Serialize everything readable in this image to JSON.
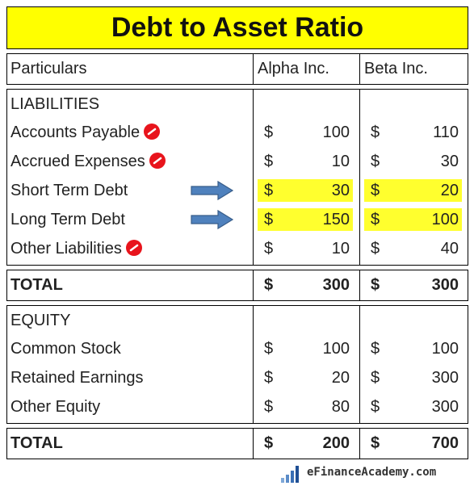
{
  "header": {
    "title": "Debt to Asset Ratio"
  },
  "table": {
    "columns": [
      "Particulars",
      "Alpha Inc.",
      "Beta Inc."
    ],
    "currency": "$",
    "sections": [
      {
        "name": "LIABILITIES",
        "rows": [
          {
            "label": "Accounts Payable",
            "alpha": 100,
            "beta": 110,
            "excluded": true
          },
          {
            "label": "Accrued Expenses",
            "alpha": 10,
            "beta": 30,
            "excluded": true
          },
          {
            "label": "Short Term Debt",
            "alpha": 30,
            "beta": 20,
            "highlight": true
          },
          {
            "label": "Long Term Debt",
            "alpha": 150,
            "beta": 100,
            "highlight": true
          },
          {
            "label": "Other Liabilities",
            "alpha": 10,
            "beta": 40,
            "excluded": true
          }
        ],
        "total": {
          "label": "TOTAL",
          "alpha": 300,
          "beta": 300
        }
      },
      {
        "name": "EQUITY",
        "rows": [
          {
            "label": "Common Stock",
            "alpha": 100,
            "beta": 100
          },
          {
            "label": "Retained Earnings",
            "alpha": 20,
            "beta": 300
          },
          {
            "label": "Other Equity",
            "alpha": 80,
            "beta": 300
          }
        ],
        "total": {
          "label": "TOTAL",
          "alpha": 200,
          "beta": 700
        }
      }
    ]
  },
  "footer": {
    "brand": "eFinanceAcademy.com"
  }
}
